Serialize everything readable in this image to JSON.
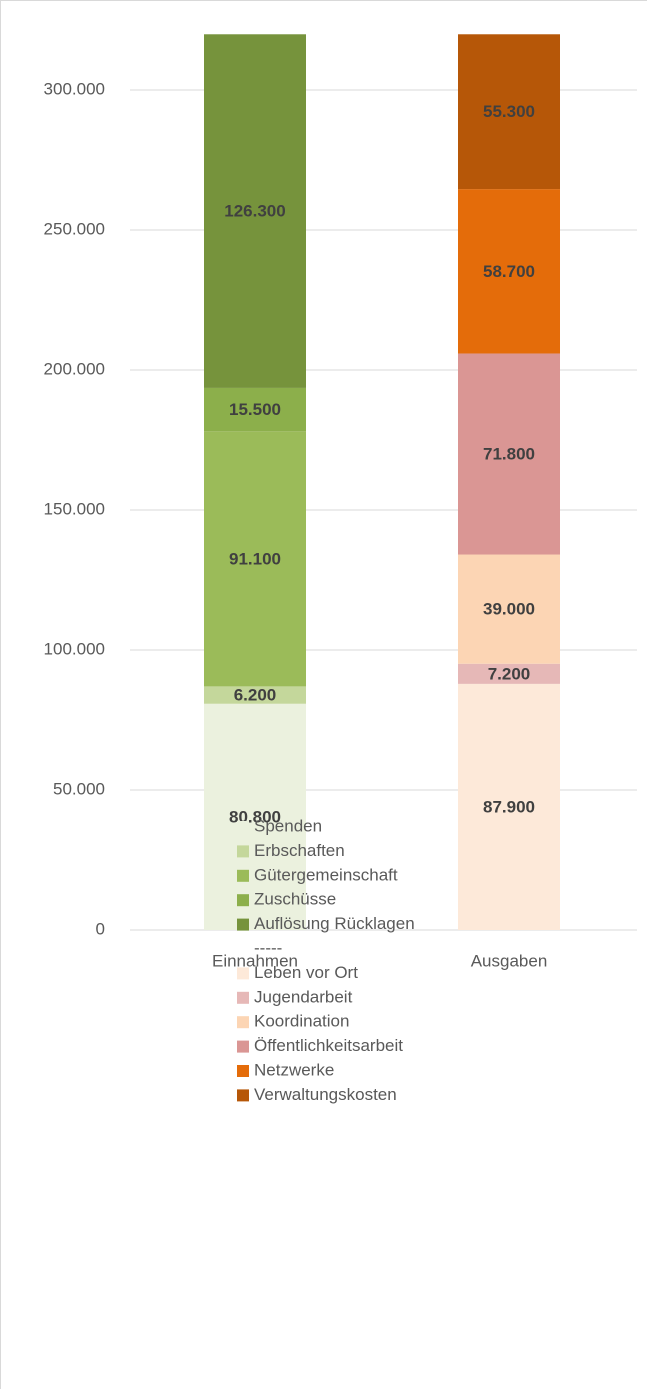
{
  "chart_data": {
    "type": "stacked_bar",
    "categories": [
      "Einnahmen",
      "Ausgaben"
    ],
    "series": [
      {
        "name": "Spenden",
        "color": "#ebf1de",
        "values": [
          80800,
          null
        ],
        "value_labels": [
          "80.800",
          null
        ]
      },
      {
        "name": "Erbschaften",
        "color": "#c4d79b",
        "values": [
          6200,
          null
        ],
        "value_labels": [
          "6.200",
          null
        ]
      },
      {
        "name": "Gütergemeinschaft",
        "color": "#9bbb59",
        "values": [
          91100,
          null
        ],
        "value_labels": [
          "91.100",
          null
        ]
      },
      {
        "name": "Zuschüsse",
        "color": "#8caf4b",
        "values": [
          15500,
          null
        ],
        "value_labels": [
          "15.500",
          null
        ]
      },
      {
        "name": "Auflösung Rücklagen",
        "color": "#76933c",
        "values": [
          126300,
          null
        ],
        "value_labels": [
          "126.300",
          null
        ]
      },
      {
        "name": "-----",
        "values": [
          null,
          null
        ]
      },
      {
        "name": "Leben vor Ort",
        "color": "#fde9d9",
        "values": [
          null,
          87900
        ],
        "value_labels": [
          null,
          "87.900"
        ]
      },
      {
        "name": "Jugendarbeit",
        "color": "#e6b8b7",
        "values": [
          null,
          7200
        ],
        "value_labels": [
          null,
          "7.200"
        ]
      },
      {
        "name": "Koordination",
        "color": "#fcd5b4",
        "values": [
          null,
          39000
        ],
        "value_labels": [
          null,
          "39.000"
        ]
      },
      {
        "name": "Öffentlichkeitsarbeit",
        "color": "#da9694",
        "values": [
          null,
          71800
        ],
        "value_labels": [
          null,
          "71.800"
        ]
      },
      {
        "name": "Netzwerke",
        "color": "#e46c0a",
        "values": [
          null,
          58700
        ],
        "value_labels": [
          null,
          "58.700"
        ]
      },
      {
        "name": "Verwaltungskosten",
        "color": "#b65708",
        "values": [
          null,
          55300
        ],
        "value_labels": [
          null,
          "55.300"
        ]
      }
    ],
    "ylim": [
      0,
      320000
    ],
    "yticks": [
      0,
      {
        "value": 50000,
        "label": "50.000"
      },
      {
        "value": 100000,
        "label": "100.000"
      },
      {
        "value": 150000,
        "label": "150.000"
      },
      {
        "value": 200000,
        "label": "200.000"
      },
      {
        "value": 250000,
        "label": "250.000"
      },
      {
        "value": 300000,
        "label": "300.000"
      }
    ],
    "grid": true,
    "legend": "bottom"
  }
}
